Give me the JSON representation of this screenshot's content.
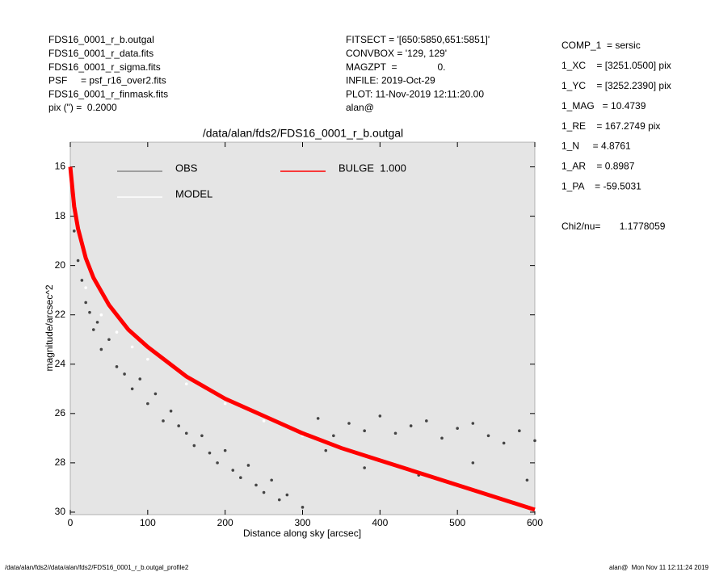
{
  "info": {
    "left": [
      "FDS16_0001_r_b.outgal",
      "FDS16_0001_r_data.fits",
      "FDS16_0001_r_sigma.fits",
      "PSF     = psf_r16_over2.fits",
      "FDS16_0001_r_finmask.fits",
      "pix (\") =  0.2000"
    ],
    "middle": [
      "FITSECT = '[650:5850,651:5851]'",
      "CONVBOX = '129, 129'",
      "MAGZPT  =               0.",
      "INFILE: 2019-Oct-29",
      "PLOT: 11-Nov-2019 12:11:20.00",
      "alan@"
    ],
    "right": [
      "COMP_1  = sersic",
      "1_XC    = [3251.0500] pix",
      "1_YC    = [3252.2390] pix",
      "1_MAG   = 10.4739",
      "1_RE    = 167.2749 pix",
      "1_N     = 4.8761",
      "1_AR    = 0.8987",
      "1_PA    = -59.5031"
    ],
    "chi2": "Chi2/nu=       1.1778059",
    "footer_left": "/data/alan/fds2//data/alan/fds2/FDS16_0001_r_b.outgal_profile2",
    "footer_right": "alan@  Mon Nov 11 12:11:24 2019"
  },
  "chart_data": {
    "type": "scatter",
    "title": "/data/alan/fds2/FDS16_0001_r_b.outgal",
    "x_label": "Distance along sky [arcsec]",
    "y_label": "magnitude/arcsec^2",
    "xlim": [
      0,
      600
    ],
    "ylim": [
      30.1,
      15
    ],
    "xticks": [
      0,
      100,
      200,
      300,
      400,
      500,
      600
    ],
    "yticks": [
      16,
      18,
      20,
      22,
      24,
      26,
      28,
      30
    ],
    "background": "#e5e5e5",
    "series": [
      {
        "name": "OBS",
        "color": "#444444",
        "legend_color": "#888888",
        "mode": "markers",
        "x": [
          5,
          10,
          15,
          20,
          25,
          30,
          35,
          40,
          50,
          60,
          70,
          80,
          90,
          100,
          110,
          120,
          130,
          140,
          150,
          160,
          170,
          180,
          190,
          200,
          210,
          220,
          230,
          240,
          250,
          260,
          270,
          280,
          300,
          320,
          340,
          360,
          380,
          400,
          420,
          440,
          460,
          480,
          500,
          520,
          540,
          560,
          580,
          600,
          330,
          380,
          450,
          520,
          590
        ],
        "values": [
          18.6,
          19.8,
          20.6,
          21.5,
          21.9,
          22.6,
          22.3,
          23.4,
          23.0,
          24.1,
          24.4,
          25.0,
          24.6,
          25.6,
          25.2,
          26.3,
          25.9,
          26.5,
          26.8,
          27.3,
          26.9,
          27.6,
          28.0,
          27.5,
          28.3,
          28.6,
          28.1,
          28.9,
          29.2,
          28.7,
          29.5,
          29.3,
          29.8,
          26.2,
          26.9,
          26.4,
          26.7,
          26.1,
          26.8,
          26.5,
          26.3,
          27.0,
          26.6,
          26.4,
          26.9,
          27.2,
          26.7,
          27.1,
          27.5,
          28.2,
          28.5,
          28.0,
          28.7
        ]
      },
      {
        "name": "MODEL",
        "color": "#ffffff",
        "legend_color": "#ffffff",
        "mode": "markers",
        "x": [
          20,
          40,
          60,
          80,
          100,
          150,
          200,
          250,
          300,
          350,
          400,
          450,
          500,
          550,
          600
        ],
        "values": [
          20.9,
          22.0,
          22.7,
          23.3,
          23.8,
          24.8,
          25.6,
          26.3,
          26.9,
          27.4,
          27.9,
          28.4,
          28.9,
          29.4,
          29.9
        ]
      },
      {
        "name": "BULGE  1.000",
        "color": "#ff0000",
        "legend_color": "#ff0000",
        "mode": "lines",
        "x": [
          0,
          5,
          10,
          20,
          30,
          50,
          75,
          100,
          150,
          200,
          250,
          300,
          350,
          400,
          450,
          500,
          550,
          600
        ],
        "values": [
          16.0,
          17.6,
          18.5,
          19.7,
          20.5,
          21.6,
          22.6,
          23.3,
          24.5,
          25.4,
          26.1,
          26.8,
          27.4,
          27.9,
          28.4,
          28.9,
          29.4,
          29.9
        ]
      }
    ]
  }
}
